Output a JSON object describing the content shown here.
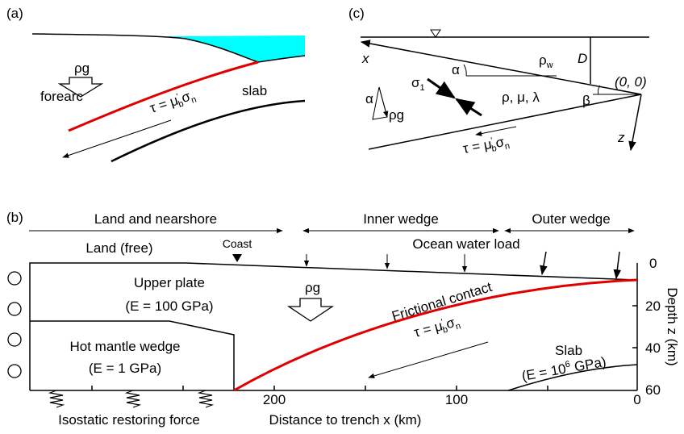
{
  "panel_a": {
    "label": "(a)",
    "rho_g": "ρg",
    "forearc": "forearc",
    "slab": "slab",
    "tau": [
      "τ = μ",
      "'",
      "b",
      "σ",
      "n"
    ]
  },
  "panel_c": {
    "label": "(c)",
    "x": "x",
    "z": "z",
    "D": "D",
    "rho_w": [
      "ρ",
      "w"
    ],
    "origin": "(0, 0)",
    "alpha": "α",
    "beta": "β",
    "params": "ρ, μ, λ",
    "sigma1": [
      "σ",
      "1"
    ],
    "alpha_small": "α",
    "rho_g": "ρg",
    "tau": [
      "τ = μ",
      "'",
      "b",
      "σ",
      "n"
    ]
  },
  "panel_b": {
    "label": "(b)",
    "land_nearshore": "Land and nearshore",
    "inner_wedge": "Inner wedge",
    "outer_wedge": "Outer wedge",
    "land_free": "Land (free)",
    "coast": "Coast",
    "ocean_load": "Ocean water load",
    "upper_plate": "Upper plate",
    "upper_plate_e": "(E = 100 GPa)",
    "mantle": "Hot mantle wedge",
    "mantle_e": "(E = 1 GPa)",
    "rho_g": "ρg",
    "frictional": "Frictional contact",
    "tau": [
      "τ = μ",
      "'",
      "b",
      "σ",
      "n"
    ],
    "slab": "Slab",
    "slab_e": [
      "(E = 10",
      "6",
      " GPa)"
    ],
    "x_ticks": [
      "200",
      "100",
      "0"
    ],
    "depth_ticks": [
      "0",
      "20",
      "40",
      "60"
    ],
    "x_label": "Distance to trench x (km)",
    "y_label": "Depth z (km)",
    "isostatic": "Isostatic restoring force"
  }
}
